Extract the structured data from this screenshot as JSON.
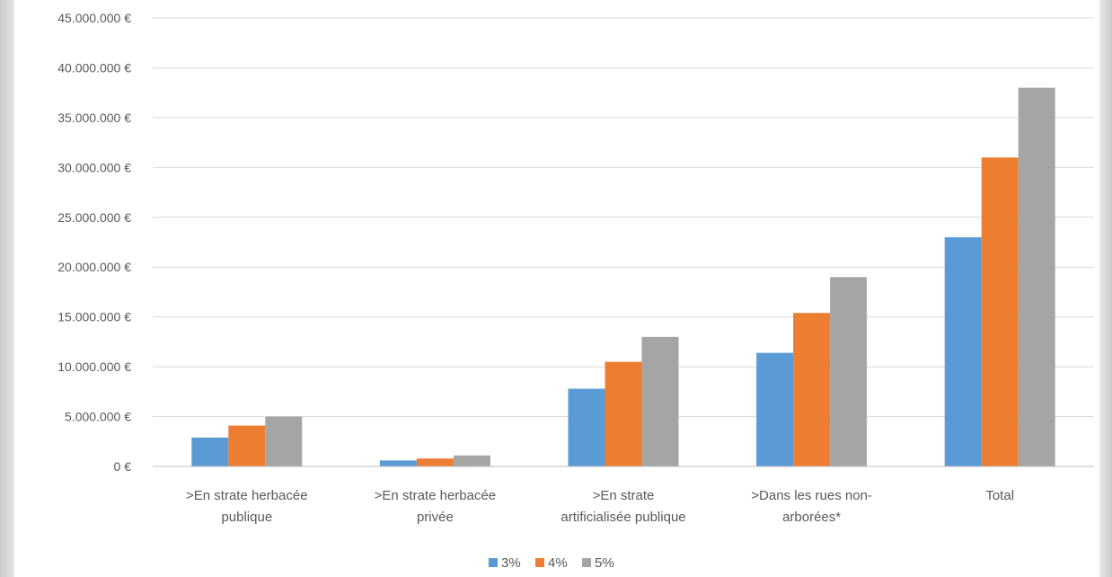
{
  "chart_data": {
    "type": "bar",
    "categories": [
      [
        ">En strate herbacée",
        "publique"
      ],
      [
        ">En strate herbacée",
        "privée"
      ],
      [
        ">En strate",
        "artificialisée publique"
      ],
      [
        ">Dans les rues non-",
        "arborées*"
      ],
      [
        "Total"
      ]
    ],
    "series": [
      {
        "name": "3%",
        "color": "#5b9bd5",
        "values": [
          2900000,
          600000,
          7800000,
          11400000,
          23000000
        ]
      },
      {
        "name": "4%",
        "color": "#ed7d31",
        "values": [
          4100000,
          800000,
          10500000,
          15400000,
          31000000
        ]
      },
      {
        "name": "5%",
        "color": "#a5a5a5",
        "values": [
          5000000,
          1100000,
          13000000,
          19000000,
          38000000
        ]
      }
    ],
    "y_ticks": [
      "0 €",
      "5.000.000 €",
      "10.000.000 €",
      "15.000.000 €",
      "20.000.000 €",
      "25.000.000 €",
      "30.000.000 €",
      "35.000.000 €",
      "40.000.000 €",
      "45.000.000 €"
    ],
    "ylim": [
      0,
      45000000
    ],
    "y_step": 5000000,
    "grid": true,
    "legend_position": "bottom"
  }
}
